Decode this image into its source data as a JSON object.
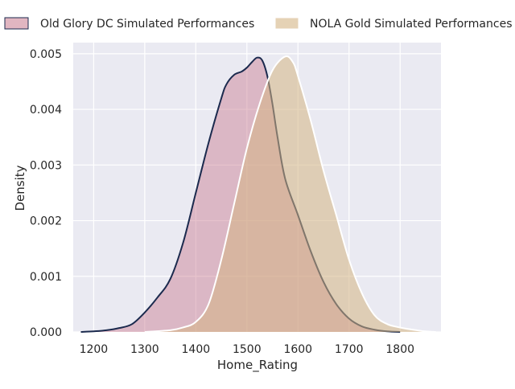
{
  "chart_data": {
    "type": "area",
    "title": "",
    "xlabel": "Home_Rating",
    "ylabel": "Density",
    "xlim": [
      1160,
      1880
    ],
    "ylim": [
      0,
      0.0052
    ],
    "xticks": [
      1200,
      1300,
      1400,
      1500,
      1600,
      1700,
      1800
    ],
    "yticks": [
      0.0,
      0.001,
      0.002,
      0.003,
      0.004,
      0.005
    ],
    "ytick_labels": [
      "0.000",
      "0.001",
      "0.002",
      "0.003",
      "0.004",
      "0.005"
    ],
    "grid": true,
    "legend_placement": "top, above plot, two columns",
    "series": [
      {
        "name": "Old Glory DC Simulated Performances",
        "fill_color": "#c97a8e",
        "line_color": "#1b2a4e",
        "points": [
          [
            1175,
            0.0
          ],
          [
            1200,
            1e-05
          ],
          [
            1225,
            3e-05
          ],
          [
            1250,
            7e-05
          ],
          [
            1275,
            0.00014
          ],
          [
            1300,
            0.00035
          ],
          [
            1325,
            0.00062
          ],
          [
            1350,
            0.00095
          ],
          [
            1375,
            0.0016
          ],
          [
            1400,
            0.0025
          ],
          [
            1425,
            0.0034
          ],
          [
            1450,
            0.0042
          ],
          [
            1460,
            0.00445
          ],
          [
            1475,
            0.00462
          ],
          [
            1490,
            0.00468
          ],
          [
            1500,
            0.00475
          ],
          [
            1510,
            0.00485
          ],
          [
            1520,
            0.00493
          ],
          [
            1530,
            0.00488
          ],
          [
            1540,
            0.0046
          ],
          [
            1550,
            0.0041
          ],
          [
            1560,
            0.0035
          ],
          [
            1575,
            0.00275
          ],
          [
            1600,
            0.0021
          ],
          [
            1625,
            0.00145
          ],
          [
            1650,
            0.0009
          ],
          [
            1675,
            0.0005
          ],
          [
            1700,
            0.00024
          ],
          [
            1725,
            0.0001
          ],
          [
            1750,
            4e-05
          ],
          [
            1775,
            1e-05
          ],
          [
            1800,
            0.0
          ]
        ]
      },
      {
        "name": "NOLA Gold Simulated Performances",
        "fill_color": "#d4b483",
        "line_color": "#ffffff",
        "points": [
          [
            1300,
            0.0
          ],
          [
            1350,
            3e-05
          ],
          [
            1375,
            8e-05
          ],
          [
            1400,
            0.00018
          ],
          [
            1425,
            0.0005
          ],
          [
            1450,
            0.0013
          ],
          [
            1475,
            0.0023
          ],
          [
            1500,
            0.0033
          ],
          [
            1525,
            0.0041
          ],
          [
            1550,
            0.0047
          ],
          [
            1575,
            0.00495
          ],
          [
            1590,
            0.00485
          ],
          [
            1600,
            0.0046
          ],
          [
            1625,
            0.0038
          ],
          [
            1650,
            0.0029
          ],
          [
            1675,
            0.0021
          ],
          [
            1700,
            0.0013
          ],
          [
            1725,
            0.0007
          ],
          [
            1750,
            0.0003
          ],
          [
            1775,
            0.00014
          ],
          [
            1800,
            8e-05
          ],
          [
            1825,
            4e-05
          ],
          [
            1850,
            1e-05
          ],
          [
            1870,
            0.0
          ]
        ]
      }
    ]
  }
}
